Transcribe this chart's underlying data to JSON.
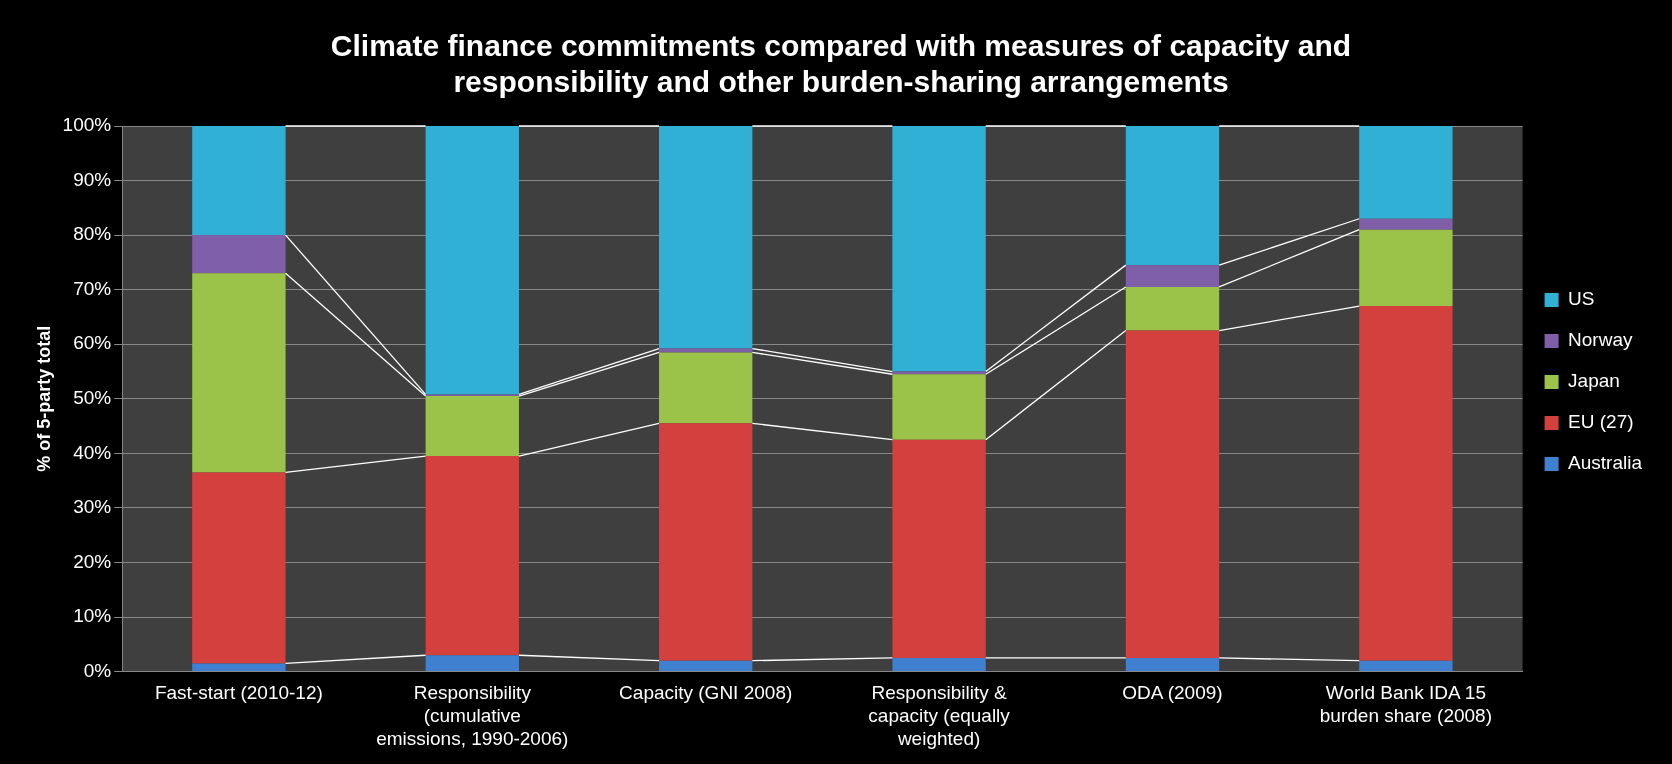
{
  "chart_data": {
    "type": "bar",
    "stacked": true,
    "title": "Climate finance commitments compared with measures of capacity and responsibility and other burden-sharing arrangements",
    "ylabel": "% of 5-party total",
    "categories": [
      "Fast-start (2010-12)",
      "Responsibility (cumulative emissions, 1990-2006)",
      "Capacity (GNI 2008)",
      "Responsibility & capacity (equally weighted)",
      "ODA (2009)",
      "World Bank IDA 15 burden share (2008)"
    ],
    "series": [
      {
        "name": "Australia",
        "color": "#3f80d0",
        "values": [
          1.5,
          3,
          2,
          2.5,
          2.5,
          2
        ]
      },
      {
        "name": "EU (27)",
        "color": "#d4403d",
        "values": [
          35,
          36.5,
          43.5,
          40,
          60,
          65
        ]
      },
      {
        "name": "Japan",
        "color": "#9bc249",
        "values": [
          36.5,
          11,
          13,
          12,
          8,
          14
        ]
      },
      {
        "name": "Norway",
        "color": "#7f5fa8",
        "values": [
          7,
          0.3,
          0.7,
          0.5,
          4,
          2
        ]
      },
      {
        "name": "US",
        "color": "#31b0d5",
        "values": [
          20,
          49.2,
          40.8,
          45,
          25.5,
          17
        ]
      }
    ],
    "ylim": [
      0,
      100
    ],
    "yticks": [
      {
        "value": 0,
        "label": "0%"
      },
      {
        "value": 10,
        "label": "10%"
      },
      {
        "value": 20,
        "label": "20%"
      },
      {
        "value": 30,
        "label": "30%"
      },
      {
        "value": 40,
        "label": "40%"
      },
      {
        "value": 50,
        "label": "50%"
      },
      {
        "value": 60,
        "label": "60%"
      },
      {
        "value": 70,
        "label": "70%"
      },
      {
        "value": 80,
        "label": "80%"
      },
      {
        "value": 90,
        "label": "90%"
      },
      {
        "value": 100,
        "label": "100%"
      }
    ],
    "grid": "y",
    "legend": "right"
  }
}
